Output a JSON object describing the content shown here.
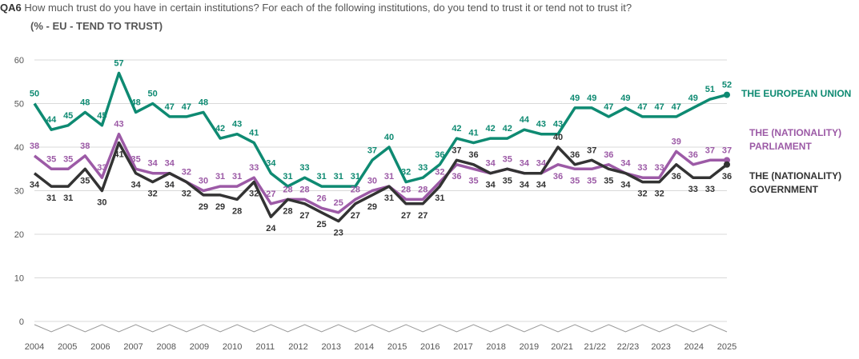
{
  "header": {
    "code": "QA6",
    "question": "How much trust do you have in certain institutions? For each of the following institutions, do you tend to trust it or tend not to trust it?",
    "subtitle": "(% - EU - TEND TO TRUST)"
  },
  "colors": {
    "eu": "#0e8a72",
    "parliament": "#9c5aa6",
    "government": "#333333",
    "grid": "#d9d9d9"
  },
  "chart_data": {
    "type": "line",
    "title": "(% - EU - TEND TO TRUST)",
    "xlabel": "",
    "ylabel": "",
    "ylim": [
      0,
      60
    ],
    "yticks": [
      "0",
      "10",
      "20",
      "30",
      "40",
      "50",
      "60"
    ],
    "x_labels": [
      "2004",
      "2005",
      "2006",
      "2007",
      "2008",
      "2009",
      "2010",
      "2011",
      "2012",
      "2013",
      "2014",
      "2015",
      "2016",
      "2017",
      "2018",
      "2019",
      "20/21",
      "21/22",
      "22/23",
      "2023",
      "2024",
      "2025"
    ],
    "series": [
      {
        "key": "eu",
        "name_lines": [
          "THE EUROPEAN UNION"
        ],
        "values": [
          50,
          44,
          45,
          48,
          45,
          57,
          48,
          50,
          47,
          47,
          48,
          42,
          43,
          41,
          34,
          31,
          33,
          31,
          31,
          31,
          37,
          40,
          32,
          33,
          36,
          42,
          41,
          42,
          42,
          44,
          43,
          43,
          49,
          49,
          47,
          49,
          47,
          47,
          47,
          49,
          51,
          52
        ]
      },
      {
        "key": "parliament",
        "name_lines": [
          "THE (NATIONALITY)",
          "PARLIAMENT"
        ],
        "values": [
          38,
          35,
          35,
          38,
          33,
          43,
          35,
          34,
          34,
          32,
          30,
          31,
          31,
          33,
          27,
          28,
          28,
          26,
          25,
          28,
          30,
          31,
          28,
          28,
          32,
          36,
          35,
          34,
          35,
          34,
          34,
          36,
          35,
          35,
          36,
          34,
          33,
          33,
          39,
          36,
          37,
          37
        ]
      },
      {
        "key": "government",
        "name_lines": [
          "THE (NATIONALITY)",
          "GOVERNMENT"
        ],
        "values": [
          34,
          31,
          31,
          35,
          30,
          41,
          34,
          32,
          34,
          32,
          29,
          29,
          28,
          32,
          24,
          28,
          27,
          25,
          23,
          27,
          29,
          31,
          27,
          27,
          31,
          37,
          36,
          34,
          35,
          34,
          34,
          40,
          36,
          37,
          35,
          34,
          32,
          32,
          36,
          33,
          33,
          36
        ]
      }
    ]
  }
}
